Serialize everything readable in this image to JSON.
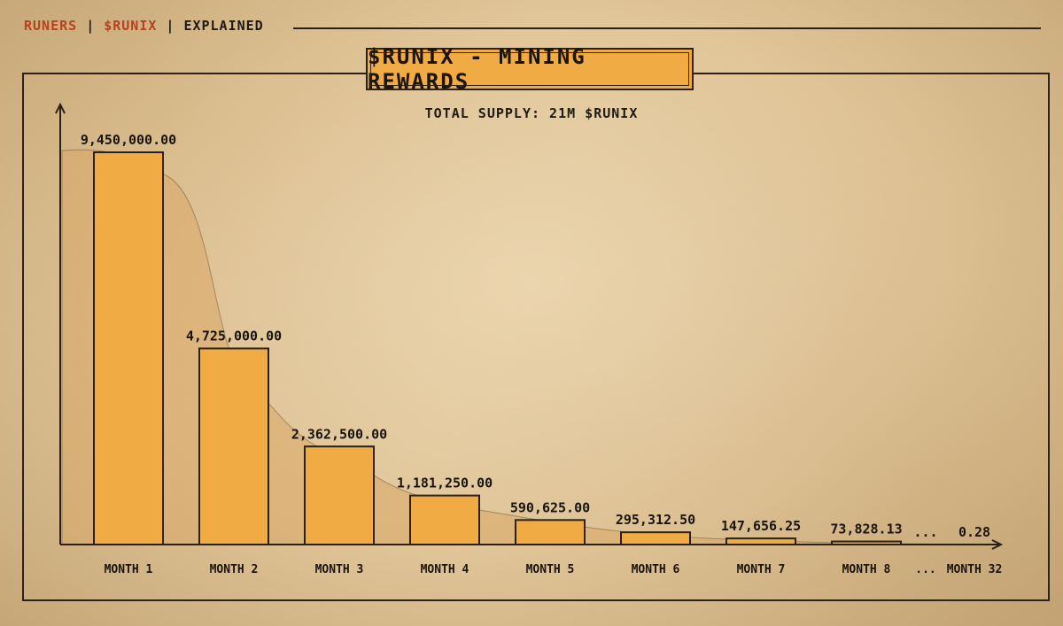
{
  "header": {
    "brand_runers": "RUNERS",
    "brand_sep1": "|",
    "brand_runix": "$RUNIX",
    "brand_sep2": "|",
    "brand_explained": "EXPLAINED"
  },
  "colors": {
    "bar_fill": "#f0ab45",
    "bar_stroke": "#2a221a",
    "curve_fill": "#d9a866",
    "accent_red": "#b8421f"
  },
  "chart_data": {
    "type": "bar",
    "title": "$RUNIX - MINING REWARDS",
    "subtitle": "TOTAL SUPPLY: 21M $RUNIX",
    "categories": [
      "MONTH 1",
      "MONTH 2",
      "MONTH 3",
      "MONTH 4",
      "MONTH 5",
      "MONTH 6",
      "MONTH 7",
      "MONTH 8",
      "...",
      "MONTH 32"
    ],
    "values": [
      9450000.0,
      4725000.0,
      2362500.0,
      1181250.0,
      590625.0,
      295312.5,
      147656.25,
      73828.13,
      null,
      0.28
    ],
    "value_labels": [
      "9,450,000.00",
      "4,725,000.00",
      "2,362,500.00",
      "1,181,250.00",
      "590,625.00",
      "295,312.50",
      "147,656.25",
      "73,828.13",
      "...",
      "0.28"
    ],
    "ylim": [
      0,
      10000000
    ],
    "grid": false,
    "legend": "none"
  }
}
